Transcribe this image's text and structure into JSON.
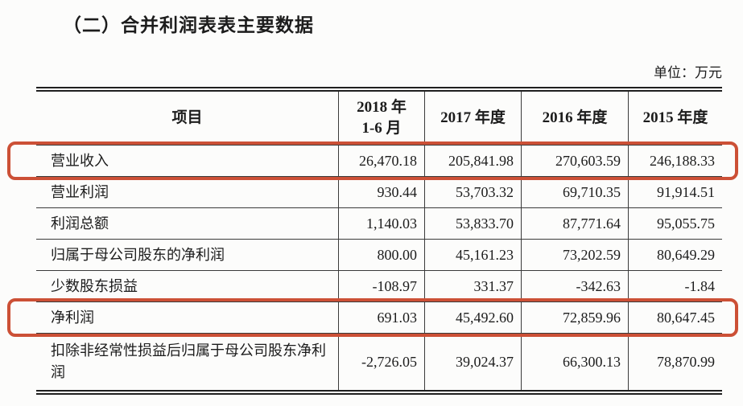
{
  "doc": {
    "title": "（二）合并利润表表主要数据",
    "unit_label": "单位：万元"
  },
  "table": {
    "highlight_color": "#cc5036",
    "headers": [
      "项目",
      "2018 年\n1-6 月",
      "2017 年度",
      "2016 年度",
      "2015 年度"
    ],
    "rows": [
      {
        "label": "营业收入",
        "values": [
          "26,470.18",
          "205,841.98",
          "270,603.59",
          "246,188.33"
        ],
        "highlighted": true
      },
      {
        "label": "营业利润",
        "values": [
          "930.44",
          "53,703.32",
          "69,710.35",
          "91,914.51"
        ],
        "highlighted": false
      },
      {
        "label": "利润总额",
        "values": [
          "1,140.03",
          "53,833.70",
          "87,771.64",
          "95,055.75"
        ],
        "highlighted": false
      },
      {
        "label": "归属于母公司股东的净利润",
        "values": [
          "800.00",
          "45,161.23",
          "73,202.59",
          "80,649.29"
        ],
        "highlighted": false
      },
      {
        "label": "少数股东损益",
        "values": [
          "-108.97",
          "331.37",
          "-342.63",
          "-1.84"
        ],
        "highlighted": false
      },
      {
        "label": "净利润",
        "values": [
          "691.03",
          "45,492.60",
          "72,859.96",
          "80,647.45"
        ],
        "highlighted": true
      },
      {
        "label": "扣除非经常性损益后归属于母公司股东净利润",
        "values": [
          "-2,726.05",
          "39,024.37",
          "66,300.13",
          "78,870.99"
        ],
        "highlighted": false
      }
    ]
  }
}
